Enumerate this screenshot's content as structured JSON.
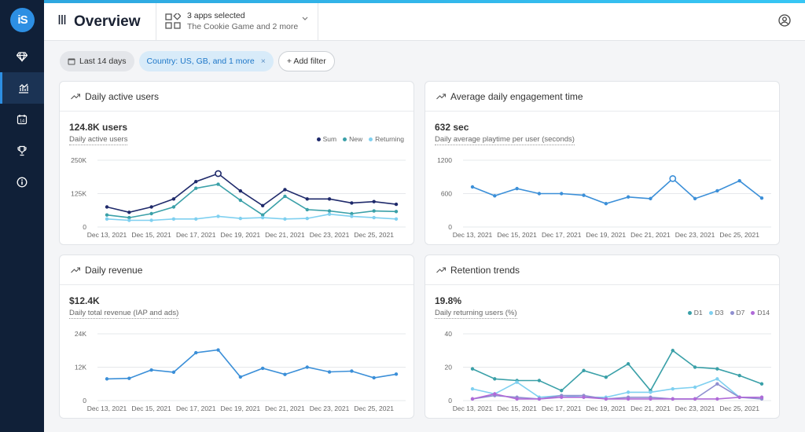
{
  "sidebar": {
    "logo_text": "iS",
    "items": [
      {
        "icon": "diamond-icon"
      },
      {
        "icon": "chart-icon",
        "active": true
      },
      {
        "icon": "calendar-icon"
      },
      {
        "icon": "trophy-icon"
      },
      {
        "icon": "info-icon"
      }
    ]
  },
  "header": {
    "title": "Overview",
    "apps_selected": "3 apps selected",
    "apps_detail": "The Cookie Game and 2 more"
  },
  "filters": {
    "date": "Last 14 days",
    "country": "Country: US, GB, and 1 more",
    "country_remove": "×",
    "add": "+ Add filter"
  },
  "cards": {
    "dau": {
      "title": "Daily active users",
      "metric": "124.8K users",
      "subtitle": "Daily active users"
    },
    "engagement": {
      "title": "Average daily engagement time",
      "metric": "632 sec",
      "subtitle": "Daily average playtime per user (seconds)"
    },
    "revenue": {
      "title": "Daily revenue",
      "metric": "$12.4K",
      "subtitle": "Daily total revenue (IAP and ads)"
    },
    "retention": {
      "title": "Retention trends",
      "metric": "19.8%",
      "subtitle": "Daily returning users (%)"
    }
  },
  "colors": {
    "sum": "#1f2a6b",
    "new": "#3aa0a8",
    "returning": "#7fd0f0",
    "single": "#3b8fd8",
    "d1": "#3aa0a8",
    "d3": "#7fd0f0",
    "d7": "#8f8fd0",
    "d14": "#b06ad8"
  },
  "chart_data": [
    {
      "id": "dau",
      "type": "line",
      "x": [
        "Dec 13, 2021",
        "Dec 14, 2021",
        "Dec 15, 2021",
        "Dec 16, 2021",
        "Dec 17, 2021",
        "Dec 18, 2021",
        "Dec 19, 2021",
        "Dec 20, 2021",
        "Dec 21, 2021",
        "Dec 22, 2021",
        "Dec 23, 2021",
        "Dec 24, 2021",
        "Dec 25, 2021",
        "Dec 26, 2021"
      ],
      "x_tick_labels": [
        "Dec 13, 2021",
        "Dec 15, 2021",
        "Dec 17, 2021",
        "Dec 19, 2021",
        "Dec 21, 2021",
        "Dec 23, 2021",
        "Dec 25, 2021"
      ],
      "y_tick_labels": [
        "250K",
        "125K",
        "0"
      ],
      "ylim": [
        0,
        250000
      ],
      "grid": true,
      "legend": "top-right",
      "series": [
        {
          "name": "Sum",
          "color_key": "sum",
          "values": [
            75000,
            55000,
            75000,
            105000,
            170000,
            200000,
            135000,
            80000,
            140000,
            105000,
            105000,
            90000,
            95000,
            85000
          ]
        },
        {
          "name": "New",
          "color_key": "new",
          "values": [
            45000,
            35000,
            50000,
            75000,
            145000,
            160000,
            100000,
            45000,
            115000,
            65000,
            60000,
            50000,
            60000,
            58000
          ]
        },
        {
          "name": "Returning",
          "color_key": "returning",
          "values": [
            30000,
            25000,
            25000,
            30000,
            30000,
            40000,
            32000,
            35000,
            30000,
            32000,
            48000,
            40000,
            35000,
            30000
          ]
        }
      ],
      "highlight_index": 5
    },
    {
      "id": "engagement",
      "type": "line",
      "x": [
        "Dec 13, 2021",
        "Dec 14, 2021",
        "Dec 15, 2021",
        "Dec 16, 2021",
        "Dec 17, 2021",
        "Dec 18, 2021",
        "Dec 19, 2021",
        "Dec 20, 2021",
        "Dec 21, 2021",
        "Dec 22, 2021",
        "Dec 23, 2021",
        "Dec 24, 2021",
        "Dec 25, 2021",
        "Dec 26, 2021"
      ],
      "x_tick_labels": [
        "Dec 13, 2021",
        "Dec 15, 2021",
        "Dec 17, 2021",
        "Dec 19, 2021",
        "Dec 21, 2021",
        "Dec 23, 2021",
        "Dec 25, 2021"
      ],
      "y_tick_labels": [
        "1200",
        "600",
        "0"
      ],
      "ylim": [
        0,
        1200
      ],
      "grid": true,
      "series": [
        {
          "name": "",
          "color_key": "single",
          "values": [
            720,
            560,
            690,
            600,
            600,
            570,
            420,
            540,
            510,
            870,
            510,
            650,
            830,
            520
          ]
        }
      ],
      "highlight_index": 9
    },
    {
      "id": "revenue",
      "type": "line",
      "x": [
        "Dec 13, 2021",
        "Dec 14, 2021",
        "Dec 15, 2021",
        "Dec 16, 2021",
        "Dec 17, 2021",
        "Dec 18, 2021",
        "Dec 19, 2021",
        "Dec 20, 2021",
        "Dec 21, 2021",
        "Dec 22, 2021",
        "Dec 23, 2021",
        "Dec 24, 2021",
        "Dec 25, 2021",
        "Dec 26, 2021"
      ],
      "x_tick_labels": [
        "Dec 13, 2021",
        "Dec 15, 2021",
        "Dec 17, 2021",
        "Dec 19, 2021",
        "Dec 21, 2021",
        "Dec 23, 2021",
        "Dec 25, 2021"
      ],
      "y_tick_labels": [
        "24K",
        "12K",
        "0"
      ],
      "ylim": [
        0,
        24000
      ],
      "grid": true,
      "series": [
        {
          "name": "",
          "color_key": "single",
          "values": [
            7800,
            8000,
            11000,
            10200,
            17200,
            18200,
            8500,
            11600,
            9400,
            12000,
            10300,
            10600,
            8200,
            9500
          ]
        }
      ]
    },
    {
      "id": "retention",
      "type": "line",
      "x": [
        "Dec 13, 2021",
        "Dec 14, 2021",
        "Dec 15, 2021",
        "Dec 16, 2021",
        "Dec 17, 2021",
        "Dec 18, 2021",
        "Dec 19, 2021",
        "Dec 20, 2021",
        "Dec 21, 2021",
        "Dec 22, 2021",
        "Dec 23, 2021",
        "Dec 24, 2021",
        "Dec 25, 2021",
        "Dec 26, 2021"
      ],
      "x_tick_labels": [
        "Dec 13, 2021",
        "Dec 15, 2021",
        "Dec 17, 2021",
        "Dec 19, 2021",
        "Dec 21, 2021",
        "Dec 23, 2021",
        "Dec 25, 2021"
      ],
      "y_tick_labels": [
        "40",
        "20",
        "0"
      ],
      "ylim": [
        0,
        40
      ],
      "grid": true,
      "legend": "top-right",
      "series": [
        {
          "name": "D1",
          "color_key": "d1",
          "values": [
            19,
            13,
            12,
            12,
            6,
            18,
            14,
            22,
            6,
            30,
            20,
            19,
            15,
            10
          ]
        },
        {
          "name": "D3",
          "color_key": "d3",
          "values": [
            7,
            4,
            11,
            2,
            3,
            2,
            2,
            5,
            5,
            7,
            8,
            13,
            2,
            2
          ]
        },
        {
          "name": "D7",
          "color_key": "d7",
          "values": [
            1,
            3,
            2,
            1,
            3,
            3,
            1,
            2,
            2,
            1,
            1,
            10,
            2,
            1
          ]
        },
        {
          "name": "D14",
          "color_key": "d14",
          "values": [
            1,
            4,
            1,
            1,
            2,
            2,
            1,
            1,
            1,
            1,
            1,
            1,
            2,
            2
          ]
        }
      ]
    }
  ]
}
